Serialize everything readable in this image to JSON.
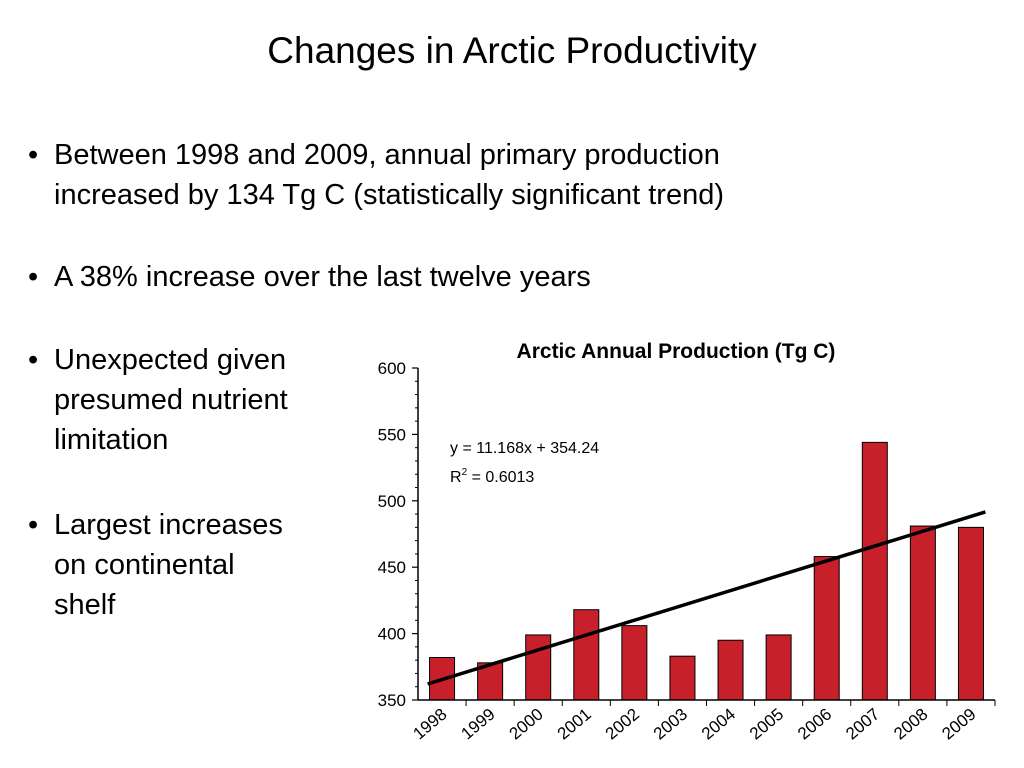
{
  "slide_title": "Changes in Arctic Productivity",
  "bullets": [
    {
      "lines": [
        "Between 1998 and 2009, annual primary production",
        "increased by 134 Tg C (statistically significant trend)"
      ]
    },
    {
      "lines": [
        "A 38% increase over the last twelve years"
      ]
    },
    {
      "lines": [
        "Unexpected given",
        "presumed nutrient",
        "limitation"
      ]
    },
    {
      "lines": [
        "Largest increases",
        "on continental",
        "shelf"
      ]
    }
  ],
  "chart_data": {
    "type": "bar",
    "title": "Arctic Annual Production (Tg C)",
    "categories": [
      "1998",
      "1999",
      "2000",
      "2001",
      "2002",
      "2003",
      "2004",
      "2005",
      "2006",
      "2007",
      "2008",
      "2009"
    ],
    "values": [
      382,
      378,
      399,
      418,
      406,
      383,
      395,
      399,
      458,
      544,
      481,
      480
    ],
    "ylim": [
      350,
      600
    ],
    "yticks": [
      350,
      400,
      450,
      500,
      550,
      600
    ],
    "bar_color": "#c8202a",
    "trendline": {
      "slope": 11.168,
      "intercept": 354.24,
      "equation": "y = 11.168x + 354.24",
      "r2_label": "R",
      "r2_sup": "2",
      "r2_value": " = 0.6013"
    },
    "grid": false,
    "legend": "none"
  }
}
